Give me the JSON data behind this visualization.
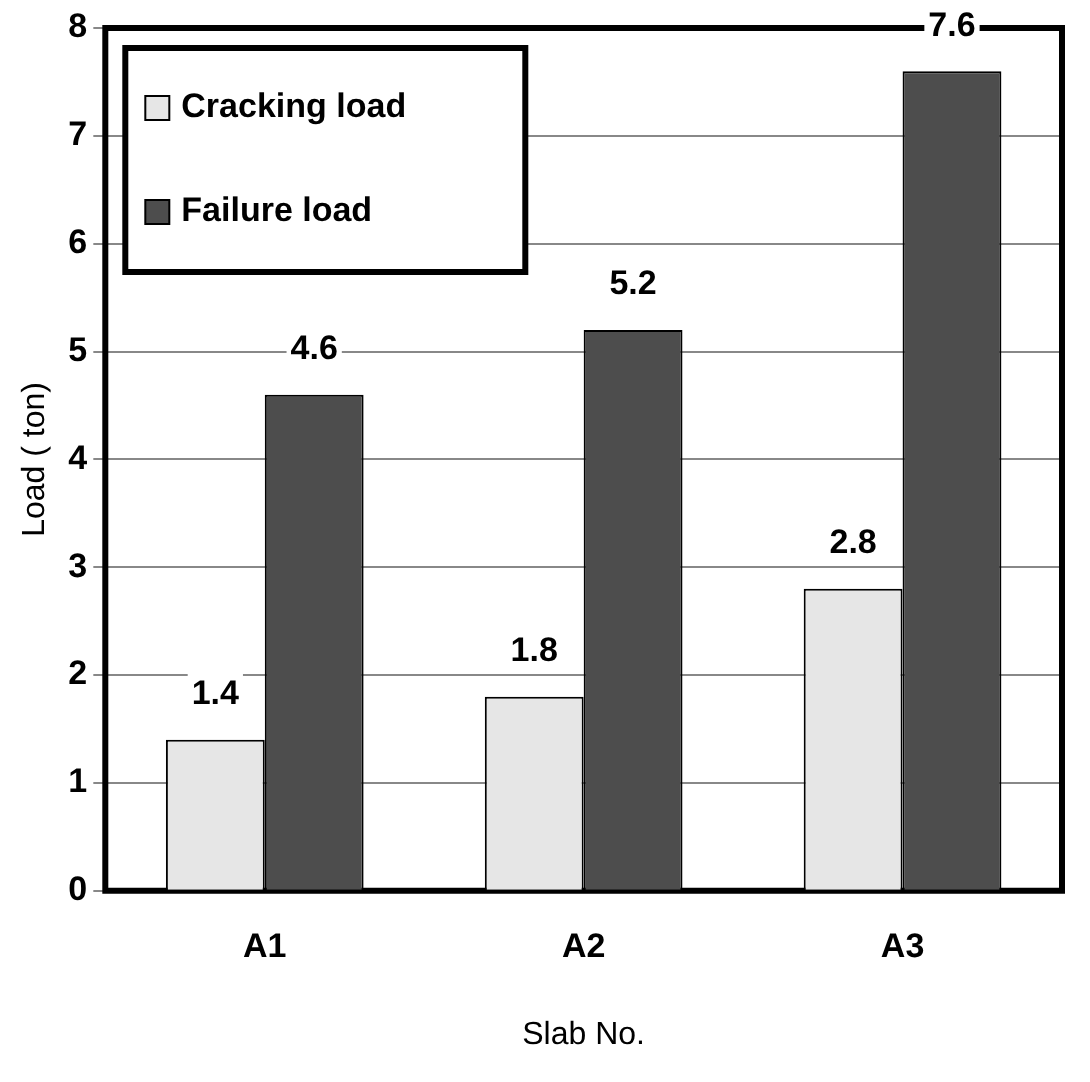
{
  "chart_data": {
    "type": "bar",
    "xlabel": "Slab No.",
    "ylabel": "Load ( ton)",
    "categories": [
      "A1",
      "A2",
      "A3"
    ],
    "series": [
      {
        "name": "Cracking load",
        "color": "#e6e6e6",
        "values": [
          1.4,
          1.8,
          2.8
        ]
      },
      {
        "name": "Failure load",
        "color": "#4d4d4d",
        "values": [
          4.6,
          5.2,
          7.6
        ]
      }
    ],
    "ylim": [
      0,
      8
    ],
    "yticks": [
      0,
      1,
      2,
      3,
      4,
      5,
      6,
      7,
      8
    ],
    "grid": "y",
    "legend": "top left",
    "data_labels": true
  }
}
